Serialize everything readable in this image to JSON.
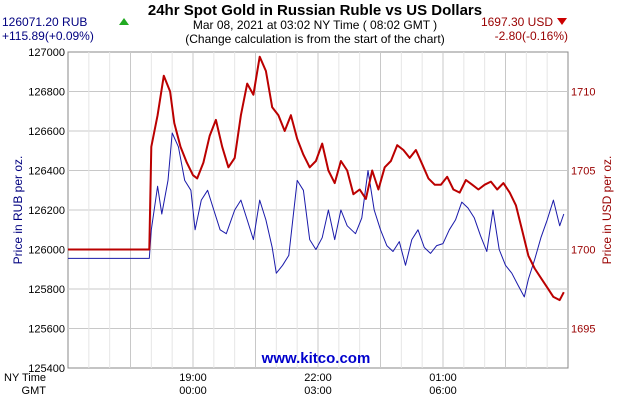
{
  "header": {
    "title": "24hr Spot Gold in Russian Ruble vs US Dollars",
    "timestamp": "Mar 08, 2021 at 03:02 NY Time ( 08:02 GMT )",
    "note": "(Change calculation is from the start of the chart)"
  },
  "left_quote": {
    "price": "126071.20 RUB",
    "change": "+115.89(+0.09%)",
    "direction": "up",
    "color": "#000080"
  },
  "right_quote": {
    "price": "1697.30 USD",
    "change": "-2.80(-0.16%)",
    "direction": "down",
    "color": "#cc0000"
  },
  "watermark": "www.kitco.com",
  "axes": {
    "x_row1_label": "NY Time",
    "x_row2_label": "GMT",
    "left_label": "Price in RUB per oz.",
    "right_label": "Price in USD per oz."
  },
  "chart_data": {
    "type": "line",
    "x_unit": "hours from start of chart",
    "x_ticks_ny": [
      "19:00",
      "22:00",
      "01:00"
    ],
    "x_ticks_gmt": [
      "00:00",
      "03:00",
      "06:00"
    ],
    "xlim": [
      0,
      24
    ],
    "y_left": {
      "label": "Price in RUB per oz.",
      "lim": [
        125400,
        127000
      ],
      "ticks": [
        "125400",
        "125600",
        "125800",
        "126000",
        "126200",
        "126400",
        "126600",
        "126800",
        "127000"
      ]
    },
    "y_right": {
      "label": "Price in USD per oz.",
      "lim": [
        1692.5,
        1712.5
      ],
      "ticks": [
        "1695",
        "1700",
        "1705",
        "1710"
      ]
    },
    "grid": true,
    "series": [
      {
        "name": "RUB",
        "axis": "left",
        "color": "#1a1aaa",
        "x": [
          0,
          3.9,
          4.0,
          4.3,
          4.5,
          4.8,
          5.0,
          5.3,
          5.6,
          5.9,
          6.1,
          6.4,
          6.7,
          7.0,
          7.3,
          7.6,
          8.0,
          8.3,
          8.6,
          8.9,
          9.2,
          9.5,
          9.8,
          10.0,
          10.3,
          10.6,
          11.0,
          11.3,
          11.6,
          11.9,
          12.2,
          12.5,
          12.8,
          13.1,
          13.4,
          13.8,
          14.1,
          14.4,
          14.7,
          15.0,
          15.3,
          15.6,
          15.9,
          16.2,
          16.5,
          16.8,
          17.1,
          17.4,
          17.7,
          18.0,
          18.3,
          18.6,
          18.9,
          19.2,
          19.5,
          19.8,
          20.1,
          20.4,
          20.7,
          21.0,
          21.3,
          21.6,
          21.9,
          22.1,
          22.4,
          22.7,
          23.0,
          23.3,
          23.6,
          23.8
        ],
        "y": [
          125955,
          125955,
          126100,
          126320,
          126180,
          126350,
          126590,
          126520,
          126350,
          126300,
          126100,
          126250,
          126300,
          126200,
          126100,
          126080,
          126200,
          126250,
          126150,
          126050,
          126250,
          126150,
          126010,
          125880,
          125920,
          125970,
          126350,
          126300,
          126050,
          126000,
          126060,
          126200,
          126050,
          126200,
          126120,
          126080,
          126160,
          126400,
          126200,
          126100,
          126020,
          125990,
          126040,
          125920,
          126050,
          126100,
          126010,
          125980,
          126020,
          126030,
          126100,
          126150,
          126240,
          126210,
          126160,
          126070,
          125990,
          126200,
          126000,
          125920,
          125880,
          125820,
          125760,
          125850,
          125950,
          126060,
          126150,
          126250,
          126120,
          126180
        ]
      },
      {
        "name": "USD",
        "axis": "right",
        "color": "#bb0000",
        "x": [
          0,
          3.9,
          4.0,
          4.3,
          4.6,
          4.9,
          5.1,
          5.4,
          5.7,
          6.0,
          6.2,
          6.5,
          6.8,
          7.1,
          7.4,
          7.7,
          8.0,
          8.3,
          8.6,
          8.9,
          9.2,
          9.5,
          9.8,
          10.1,
          10.4,
          10.7,
          11.0,
          11.3,
          11.6,
          11.9,
          12.2,
          12.5,
          12.8,
          13.1,
          13.4,
          13.7,
          14.0,
          14.3,
          14.6,
          14.9,
          15.2,
          15.5,
          15.8,
          16.1,
          16.4,
          16.7,
          17.0,
          17.3,
          17.6,
          17.9,
          18.2,
          18.5,
          18.8,
          19.1,
          19.4,
          19.7,
          20.0,
          20.3,
          20.6,
          20.9,
          21.2,
          21.5,
          21.8,
          22.1,
          22.4,
          22.7,
          23.0,
          23.3,
          23.6,
          23.8
        ],
        "y": [
          1700,
          1700,
          1706.5,
          1708.5,
          1711,
          1710,
          1708,
          1706.5,
          1705.5,
          1704.7,
          1704.5,
          1705.5,
          1707.2,
          1708.2,
          1706.5,
          1705.2,
          1705.8,
          1708.5,
          1710.5,
          1709.8,
          1712.2,
          1711.3,
          1709,
          1708.5,
          1707.5,
          1708.5,
          1707,
          1706,
          1705.2,
          1705.6,
          1706.7,
          1705,
          1704.2,
          1705.6,
          1705,
          1703.5,
          1703.8,
          1703.2,
          1705,
          1703.8,
          1705.2,
          1705.6,
          1706.6,
          1706.3,
          1705.8,
          1706.3,
          1705.4,
          1704.5,
          1704.1,
          1704.1,
          1704.6,
          1703.8,
          1703.6,
          1704.4,
          1704.1,
          1703.8,
          1704.1,
          1704.3,
          1703.8,
          1704.2,
          1703.6,
          1702.8,
          1701.2,
          1699.6,
          1698.8,
          1698.2,
          1697.6,
          1697.0,
          1696.8,
          1697.3
        ]
      }
    ]
  }
}
